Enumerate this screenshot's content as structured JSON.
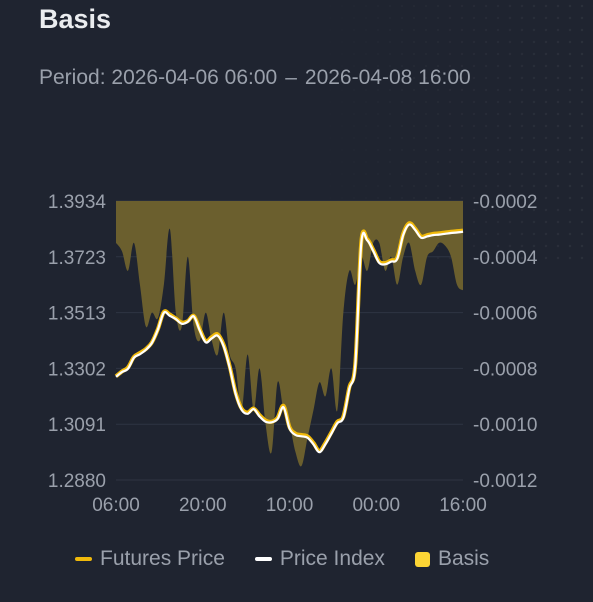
{
  "header": {
    "title": "Basis",
    "period_label": "Period:",
    "period_start": "2026-04-06 06:00",
    "period_sep": "–",
    "period_end": "2026-04-08 16:00"
  },
  "colors": {
    "futures": "#f0b90b",
    "index": "#ffffff",
    "basis": "#fcd535",
    "basis_fill": "#6b5f2e",
    "grid": "#2f3542",
    "text": "#9aa0ab"
  },
  "legend": {
    "futures": "Futures Price",
    "index": "Price Index",
    "basis": "Basis"
  },
  "chart_data": {
    "type": "line",
    "x_tick_labels": [
      "06:00",
      "20:00",
      "10:00",
      "00:00",
      "16:00"
    ],
    "y_left": {
      "range": [
        1.288,
        1.3934
      ],
      "tick_labels": [
        "1.3934",
        "1.3723",
        "1.3513",
        "1.3302",
        "1.3091",
        "1.2880"
      ]
    },
    "y_right": {
      "range": [
        -0.0012,
        -0.0002
      ],
      "tick_labels": [
        "-0.0002",
        "-0.0004",
        "-0.0006",
        "-0.0008",
        "-0.0010",
        "-0.0012"
      ]
    },
    "grid": true,
    "legend_position": "bottom",
    "series": [
      {
        "name": "Futures Price",
        "axis": "left",
        "t": [
          0,
          1,
          2,
          3,
          4,
          5,
          6,
          7,
          8,
          9,
          10,
          11,
          12,
          13,
          14,
          15,
          16,
          17,
          18,
          19,
          20,
          21,
          22,
          23,
          24,
          25,
          26,
          27,
          28,
          29,
          30,
          31,
          32,
          33,
          34,
          35,
          36,
          37,
          38,
          39,
          40,
          41,
          42,
          43,
          44,
          45,
          46,
          47,
          48,
          49,
          50,
          51,
          52,
          53,
          54,
          55,
          56,
          57,
          58
        ],
        "values": [
          1.3272,
          1.329,
          1.3305,
          1.3345,
          1.336,
          1.3375,
          1.34,
          1.345,
          1.3515,
          1.3505,
          1.349,
          1.3475,
          1.348,
          1.35,
          1.345,
          1.3405,
          1.342,
          1.343,
          1.339,
          1.331,
          1.321,
          1.315,
          1.3135,
          1.315,
          1.3125,
          1.3105,
          1.31,
          1.3115,
          1.316,
          1.308,
          1.3055,
          1.305,
          1.3045,
          1.302,
          1.299,
          1.302,
          1.306,
          1.31,
          1.312,
          1.323,
          1.332,
          1.378,
          1.379,
          1.375,
          1.3705,
          1.37,
          1.371,
          1.372,
          1.381,
          1.385,
          1.383,
          1.38,
          1.3805,
          1.381,
          1.3812,
          1.3815,
          1.3818,
          1.382,
          1.3822
        ]
      },
      {
        "name": "Price Index",
        "axis": "left",
        "t": [
          0,
          1,
          2,
          3,
          4,
          5,
          6,
          7,
          8,
          9,
          10,
          11,
          12,
          13,
          14,
          15,
          16,
          17,
          18,
          19,
          20,
          21,
          22,
          23,
          24,
          25,
          26,
          27,
          28,
          29,
          30,
          31,
          32,
          33,
          34,
          35,
          36,
          37,
          38,
          39,
          40,
          41,
          42,
          43,
          44,
          45,
          46,
          47,
          48,
          49,
          50,
          51,
          52,
          53,
          54,
          55,
          56,
          57,
          58
        ],
        "values": [
          1.327,
          1.3288,
          1.33,
          1.3342,
          1.3355,
          1.3372,
          1.3398,
          1.3448,
          1.3512,
          1.35,
          1.3488,
          1.347,
          1.3478,
          1.3498,
          1.3445,
          1.34,
          1.3415,
          1.3425,
          1.3385,
          1.3305,
          1.3205,
          1.3145,
          1.313,
          1.3148,
          1.312,
          1.31,
          1.3098,
          1.311,
          1.3155,
          1.3075,
          1.305,
          1.3045,
          1.304,
          1.3015,
          1.2985,
          1.3015,
          1.3055,
          1.3095,
          1.3115,
          1.3225,
          1.3315,
          1.3775,
          1.3785,
          1.3745,
          1.37,
          1.3695,
          1.3705,
          1.3715,
          1.3805,
          1.3845,
          1.3825,
          1.3795,
          1.38,
          1.3805,
          1.3807,
          1.381,
          1.3813,
          1.3815,
          1.3818
        ]
      },
      {
        "name": "Basis",
        "axis": "right",
        "t": [
          0,
          1,
          2,
          3,
          4,
          5,
          6,
          7,
          8,
          9,
          10,
          11,
          12,
          13,
          14,
          15,
          16,
          17,
          18,
          19,
          20,
          21,
          22,
          23,
          24,
          25,
          26,
          27,
          28,
          29,
          30,
          31,
          32,
          33,
          34,
          35,
          36,
          37,
          38,
          39,
          40,
          41,
          42,
          43,
          44,
          45,
          46,
          47,
          48,
          49,
          50,
          51,
          52,
          53,
          54,
          55,
          56,
          57,
          58
        ],
        "values": [
          -0.00035,
          -0.00038,
          -0.00045,
          -0.00035,
          -0.0005,
          -0.00065,
          -0.0006,
          -0.00062,
          -0.0005,
          -0.0003,
          -0.0006,
          -0.00065,
          -0.0004,
          -0.00065,
          -0.0007,
          -0.0006,
          -0.0007,
          -0.00075,
          -0.0006,
          -0.00075,
          -0.0008,
          -0.00095,
          -0.00075,
          -0.00095,
          -0.0008,
          -0.001,
          -0.0011,
          -0.00085,
          -0.00095,
          -0.001,
          -0.0011,
          -0.00115,
          -0.00105,
          -0.00095,
          -0.00085,
          -0.0009,
          -0.0008,
          -0.00095,
          -0.0006,
          -0.00045,
          -0.0005,
          -0.0004,
          -0.00045,
          -0.00035,
          -0.00035,
          -0.00045,
          -0.0004,
          -0.0005,
          -0.0004,
          -0.00035,
          -0.00045,
          -0.0005,
          -0.0004,
          -0.00038,
          -0.00035,
          -0.00036,
          -0.0004,
          -0.0005,
          -0.00052
        ]
      }
    ]
  }
}
